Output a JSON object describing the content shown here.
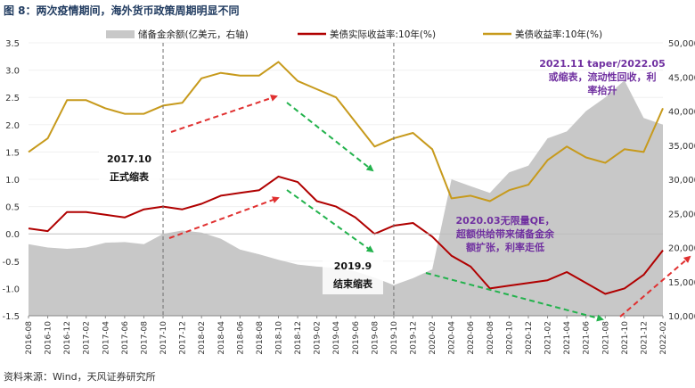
{
  "figure_title": "图 8：两次疫情期间，海外货币政策周期明显不同",
  "source": "资料来源：Wind，天风证券研究所",
  "colors": {
    "reserves": "#c8c8c8",
    "real_yield": "#b00000",
    "nominal_yield": "#c79a1c",
    "red_arrow": "#e03030",
    "green_arrow": "#22b24c",
    "annotation_purple": "#7030a0",
    "title_blue": "#1f3a5f",
    "vline": "#707070"
  },
  "chart_data": {
    "type": "line",
    "x": [
      "2016-08",
      "2016-10",
      "2016-12",
      "2017-02",
      "2017-04",
      "2017-06",
      "2017-08",
      "2017-10",
      "2017-12",
      "2018-02",
      "2018-04",
      "2018-06",
      "2018-08",
      "2018-10",
      "2018-12",
      "2019-02",
      "2019-04",
      "2019-06",
      "2019-08",
      "2019-10",
      "2019-12",
      "2020-02",
      "2020-04",
      "2020-06",
      "2020-08",
      "2020-10",
      "2020-12",
      "2021-02",
      "2021-04",
      "2021-06",
      "2021-08",
      "2021-10",
      "2021-12",
      "2022-02"
    ],
    "x_ticks": [
      "2016-08",
      "2016-10",
      "2016-12",
      "2017-02",
      "2017-04",
      "2017-06",
      "2017-08",
      "2017-10",
      "2017-12",
      "2018-02",
      "2018-04",
      "2018-06",
      "2018-08",
      "2018-10",
      "2018-12",
      "2019-02",
      "2019-04",
      "2019-06",
      "2019-08",
      "2019-10",
      "2019-12",
      "2020-02",
      "2020-04",
      "2020-06",
      "2020-08",
      "2020-10",
      "2020-12",
      "2021-02",
      "2021-04",
      "2021-06",
      "2021-08",
      "2021-10",
      "2021-12",
      "2022-02"
    ],
    "left_axis": {
      "ylim": [
        -1.5,
        3.5
      ],
      "ticks": [
        "-1.5",
        "-1.0",
        "-0.5",
        "0.0",
        "0.5",
        "1.0",
        "1.5",
        "2.0",
        "2.5",
        "3.0",
        "3.5"
      ]
    },
    "right_axis": {
      "ylim": [
        10000,
        50000
      ],
      "ticks": [
        "10,000",
        "15,000",
        "20,000",
        "25,000",
        "30,000",
        "35,000",
        "40,000",
        "45,000",
        "50,000"
      ]
    },
    "series": [
      {
        "name": "储备金余额(亿美元，右轴)",
        "type": "area",
        "axis": "right",
        "values": [
          20500,
          20000,
          19800,
          20000,
          20700,
          20800,
          20500,
          22000,
          22500,
          22200,
          21300,
          19700,
          19000,
          18200,
          17500,
          17200,
          17000,
          16500,
          15600,
          14500,
          15500,
          16800,
          30000,
          29000,
          28000,
          31000,
          32000,
          36000,
          37000,
          40000,
          42000,
          44500,
          39000,
          38000
        ]
      },
      {
        "name": "美债实际收益率:10年(%)",
        "type": "line",
        "axis": "left",
        "values": [
          0.1,
          0.05,
          0.4,
          0.4,
          0.35,
          0.3,
          0.45,
          0.5,
          0.45,
          0.55,
          0.7,
          0.75,
          0.8,
          1.05,
          0.95,
          0.6,
          0.5,
          0.3,
          0.0,
          0.15,
          0.2,
          -0.05,
          -0.4,
          -0.6,
          -1.0,
          -0.95,
          -0.9,
          -0.85,
          -0.7,
          -0.9,
          -1.1,
          -1.0,
          -0.75,
          -0.3
        ]
      },
      {
        "name": "美债收益率:10年(%)",
        "type": "line",
        "axis": "left",
        "values": [
          1.5,
          1.75,
          2.45,
          2.45,
          2.3,
          2.2,
          2.2,
          2.35,
          2.4,
          2.85,
          2.95,
          2.9,
          2.9,
          3.15,
          2.8,
          2.65,
          2.5,
          2.05,
          1.6,
          1.75,
          1.85,
          1.55,
          0.65,
          0.7,
          0.6,
          0.8,
          0.9,
          1.35,
          1.6,
          1.4,
          1.3,
          1.55,
          1.5,
          2.3
        ]
      }
    ],
    "annotations": {
      "vline_labels": [
        "2017.10\n正式缩表",
        "2019.9\n结束缩表"
      ],
      "covid_note": "2020.03无限量QE，\n超额供给带来储备金余\n额扩张，利率走低",
      "taper_note": "2021.11 taper/2022.05\n或缩表，流动性回收，利\n率抬升"
    }
  }
}
